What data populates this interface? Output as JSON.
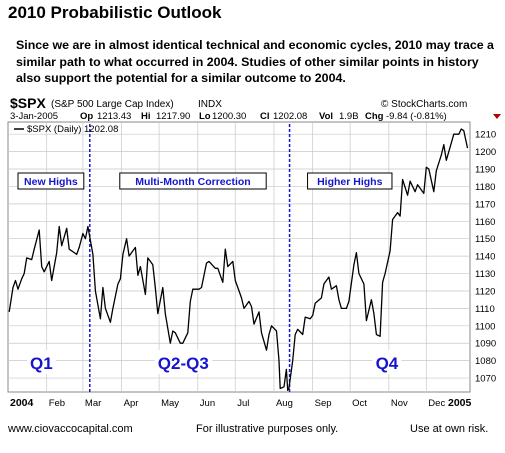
{
  "header": {
    "title": "2010 Probabilistic Outlook",
    "description": "Since we are in almost identical technical and economic cycles, 2010 may trace a similar path to what occurred in 2004.  Studies of other similar points in history also support the potential for a similar outcome to 2004."
  },
  "chart_data": {
    "type": "line",
    "symbol": "$SPX",
    "symbol_desc": "(S&P 500 Large Cap Index)",
    "exchange": "INDX",
    "source": "© StockCharts.com",
    "date": "3-Jan-2005",
    "ohlc": {
      "open_label": "Op",
      "open": "1213.43",
      "high_label": "Hi",
      "high": "1217.90",
      "low_label": "Lo",
      "low": "1200.30",
      "close_label": "Cl",
      "close": "1202.08",
      "vol_label": "Vol",
      "vol": "1.9B",
      "chg_label": "Chg",
      "chg": "-9.84 (-0.81%)"
    },
    "legend": "$SPX (Daily) 1202.08",
    "ylim": [
      1062,
      1217
    ],
    "y_ticks": [
      1070,
      1080,
      1090,
      1100,
      1110,
      1120,
      1130,
      1140,
      1150,
      1160,
      1170,
      1180,
      1190,
      1200,
      1210
    ],
    "x_ticks": [
      "2004",
      "Feb",
      "Mar",
      "Apr",
      "May",
      "Jun",
      "Jul",
      "Aug",
      "Sep",
      "Oct",
      "Nov",
      "Dec",
      "2005"
    ],
    "grid": true,
    "series": [
      {
        "color": "#000000",
        "x": [
          "2004-01-02",
          "2004-01-05",
          "2004-01-07",
          "2004-01-09",
          "2004-01-12",
          "2004-01-14",
          "2004-01-16",
          "2004-01-20",
          "2004-01-22",
          "2004-01-26",
          "2004-01-28",
          "2004-01-30",
          "2004-02-03",
          "2004-02-05",
          "2004-02-09",
          "2004-02-11",
          "2004-02-13",
          "2004-02-17",
          "2004-02-19",
          "2004-02-23",
          "2004-02-25",
          "2004-02-27",
          "2004-03-01",
          "2004-03-03",
          "2004-03-05",
          "2004-03-09",
          "2004-03-11",
          "2004-03-15",
          "2004-03-17",
          "2004-03-19",
          "2004-03-23",
          "2004-03-25",
          "2004-03-29",
          "2004-03-31",
          "2004-04-02",
          "2004-04-05",
          "2004-04-07",
          "2004-04-12",
          "2004-04-14",
          "2004-04-16",
          "2004-04-20",
          "2004-04-22",
          "2004-04-26",
          "2004-04-28",
          "2004-04-30",
          "2004-05-04",
          "2004-05-06",
          "2004-05-10",
          "2004-05-12",
          "2004-05-14",
          "2004-05-18",
          "2004-05-20",
          "2004-05-24",
          "2004-05-26",
          "2004-05-28",
          "2004-06-02",
          "2004-06-04",
          "2004-06-08",
          "2004-06-10",
          "2004-06-15",
          "2004-06-17",
          "2004-06-21",
          "2004-06-23",
          "2004-06-25",
          "2004-06-29",
          "2004-07-01",
          "2004-07-06",
          "2004-07-08",
          "2004-07-12",
          "2004-07-14",
          "2004-07-16",
          "2004-07-20",
          "2004-07-22",
          "2004-07-26",
          "2004-07-28",
          "2004-07-30",
          "2004-08-03",
          "2004-08-05",
          "2004-08-06",
          "2004-08-09",
          "2004-08-11",
          "2004-08-12",
          "2004-08-13",
          "2004-08-16",
          "2004-08-18",
          "2004-08-20",
          "2004-08-24",
          "2004-08-26",
          "2004-08-30",
          "2004-09-01",
          "2004-09-03",
          "2004-09-08",
          "2004-09-10",
          "2004-09-14",
          "2004-09-16",
          "2004-09-20",
          "2004-09-22",
          "2004-09-24",
          "2004-09-28",
          "2004-09-30",
          "2004-10-04",
          "2004-10-06",
          "2004-10-08",
          "2004-10-12",
          "2004-10-14",
          "2004-10-18",
          "2004-10-20",
          "2004-10-22",
          "2004-10-25",
          "2004-10-27",
          "2004-10-29",
          "2004-11-02",
          "2004-11-04",
          "2004-11-08",
          "2004-11-10",
          "2004-11-12",
          "2004-11-16",
          "2004-11-18",
          "2004-11-22",
          "2004-11-24",
          "2004-11-29",
          "2004-12-01",
          "2004-12-03",
          "2004-12-07",
          "2004-12-09",
          "2004-12-13",
          "2004-12-15",
          "2004-12-17",
          "2004-12-21",
          "2004-12-23",
          "2004-12-27",
          "2004-12-29",
          "2004-12-31",
          "2005-01-03"
        ],
        "y": [
          1108,
          1122,
          1126,
          1121,
          1127,
          1130,
          1139,
          1138,
          1144,
          1155,
          1134,
          1131,
          1137,
          1126,
          1142,
          1157,
          1146,
          1156,
          1144,
          1142,
          1141,
          1145,
          1153,
          1150,
          1157,
          1141,
          1120,
          1104,
          1122,
          1110,
          1102,
          1110,
          1124,
          1127,
          1141,
          1150,
          1140,
          1145,
          1129,
          1134,
          1118,
          1139,
          1135,
          1122,
          1107,
          1122,
          1107,
          1090,
          1097,
          1096,
          1090,
          1090,
          1096,
          1114,
          1121,
          1121,
          1122,
          1136,
          1137,
          1133,
          1133,
          1125,
          1144,
          1134,
          1137,
          1126,
          1116,
          1110,
          1114,
          1111,
          1101,
          1108,
          1096,
          1086,
          1095,
          1100,
          1097,
          1080,
          1064,
          1065,
          1075,
          1063,
          1064,
          1080,
          1095,
          1098,
          1095,
          1105,
          1104,
          1106,
          1113,
          1116,
          1124,
          1128,
          1121,
          1123,
          1115,
          1110,
          1110,
          1114,
          1135,
          1142,
          1130,
          1124,
          1103,
          1115,
          1107,
          1095,
          1094,
          1125,
          1130,
          1143,
          1161,
          1165,
          1163,
          1184,
          1175,
          1183,
          1177,
          1181,
          1176,
          1191,
          1190,
          1177,
          1189,
          1198,
          1204,
          1195,
          1205,
          1210,
          1210,
          1213,
          1212,
          1202
        ]
      }
    ],
    "markers": [
      {
        "label": "New Highs",
        "quarter": "Q1",
        "divider_after": "2004-03-05"
      },
      {
        "label": "Multi-Month Correction",
        "quarter": "Q2-Q3",
        "divider_after": "2004-08-12"
      },
      {
        "label": "Higher Highs",
        "quarter": "Q4"
      }
    ],
    "colors": {
      "accent": "#1515ce",
      "line": "#000000",
      "grid": "#c8c8c8",
      "chg": "#b00000"
    }
  },
  "footer": {
    "site": "www.ciovaccocapital.com",
    "note": "For illustrative purposes only.",
    "risk": "Use at own risk."
  }
}
